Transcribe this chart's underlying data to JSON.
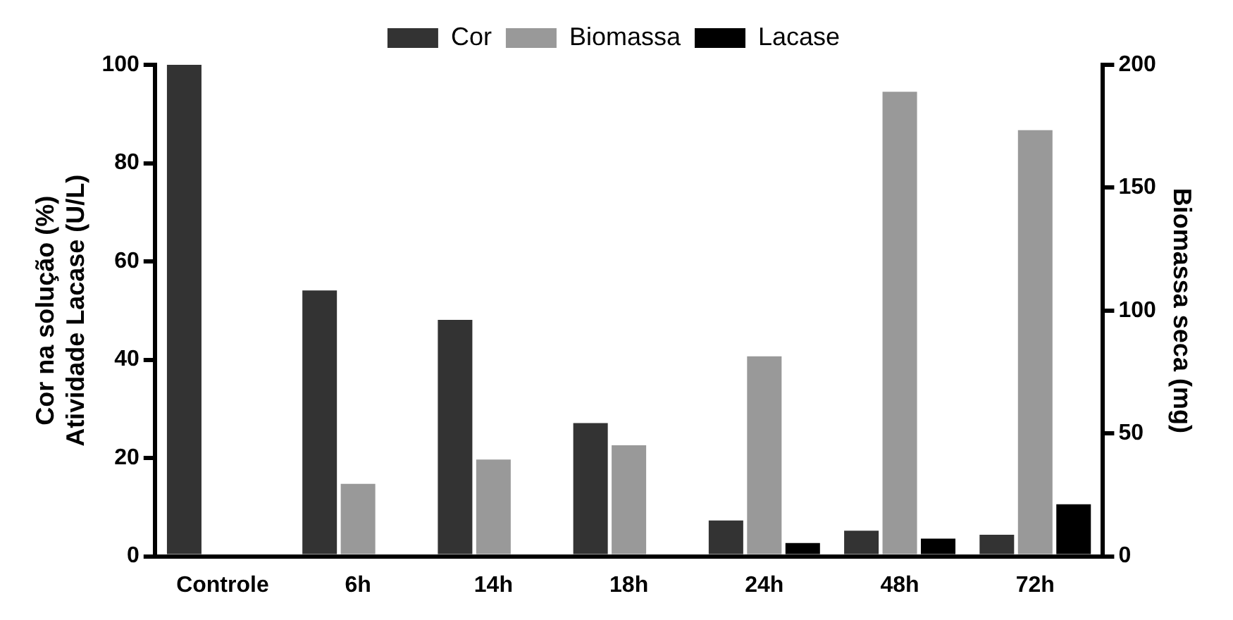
{
  "chart_data": {
    "type": "bar",
    "categories": [
      "Controle",
      "6h",
      "14h",
      "18h",
      "24h",
      "48h",
      "72h"
    ],
    "ylabel": "Cor na solução (%)\nAtividade Lacase (U/L)",
    "y2label": "Biomassa seca (mg)",
    "ylim": [
      0,
      100
    ],
    "yticks": [
      0,
      20,
      40,
      60,
      80,
      100
    ],
    "y2lim": [
      0,
      200
    ],
    "y2ticks": [
      0,
      50,
      100,
      150,
      200
    ],
    "grid": false,
    "legend": "top",
    "series": [
      {
        "name": "Cor",
        "color": "#333333",
        "values": [
          100,
          54.1,
          48.1,
          27.1,
          7.3,
          5.2,
          4.4
        ]
      },
      {
        "name": "Biomassa",
        "color": "#999999",
        "axis": "y2",
        "values": [
          0,
          29.5,
          39.4,
          45.2,
          81.4,
          189,
          173.4
        ]
      },
      {
        "name": "Lacase",
        "color": "#000000",
        "values": [
          0,
          0,
          0,
          0,
          2.7,
          3.6,
          10.6
        ]
      }
    ]
  }
}
